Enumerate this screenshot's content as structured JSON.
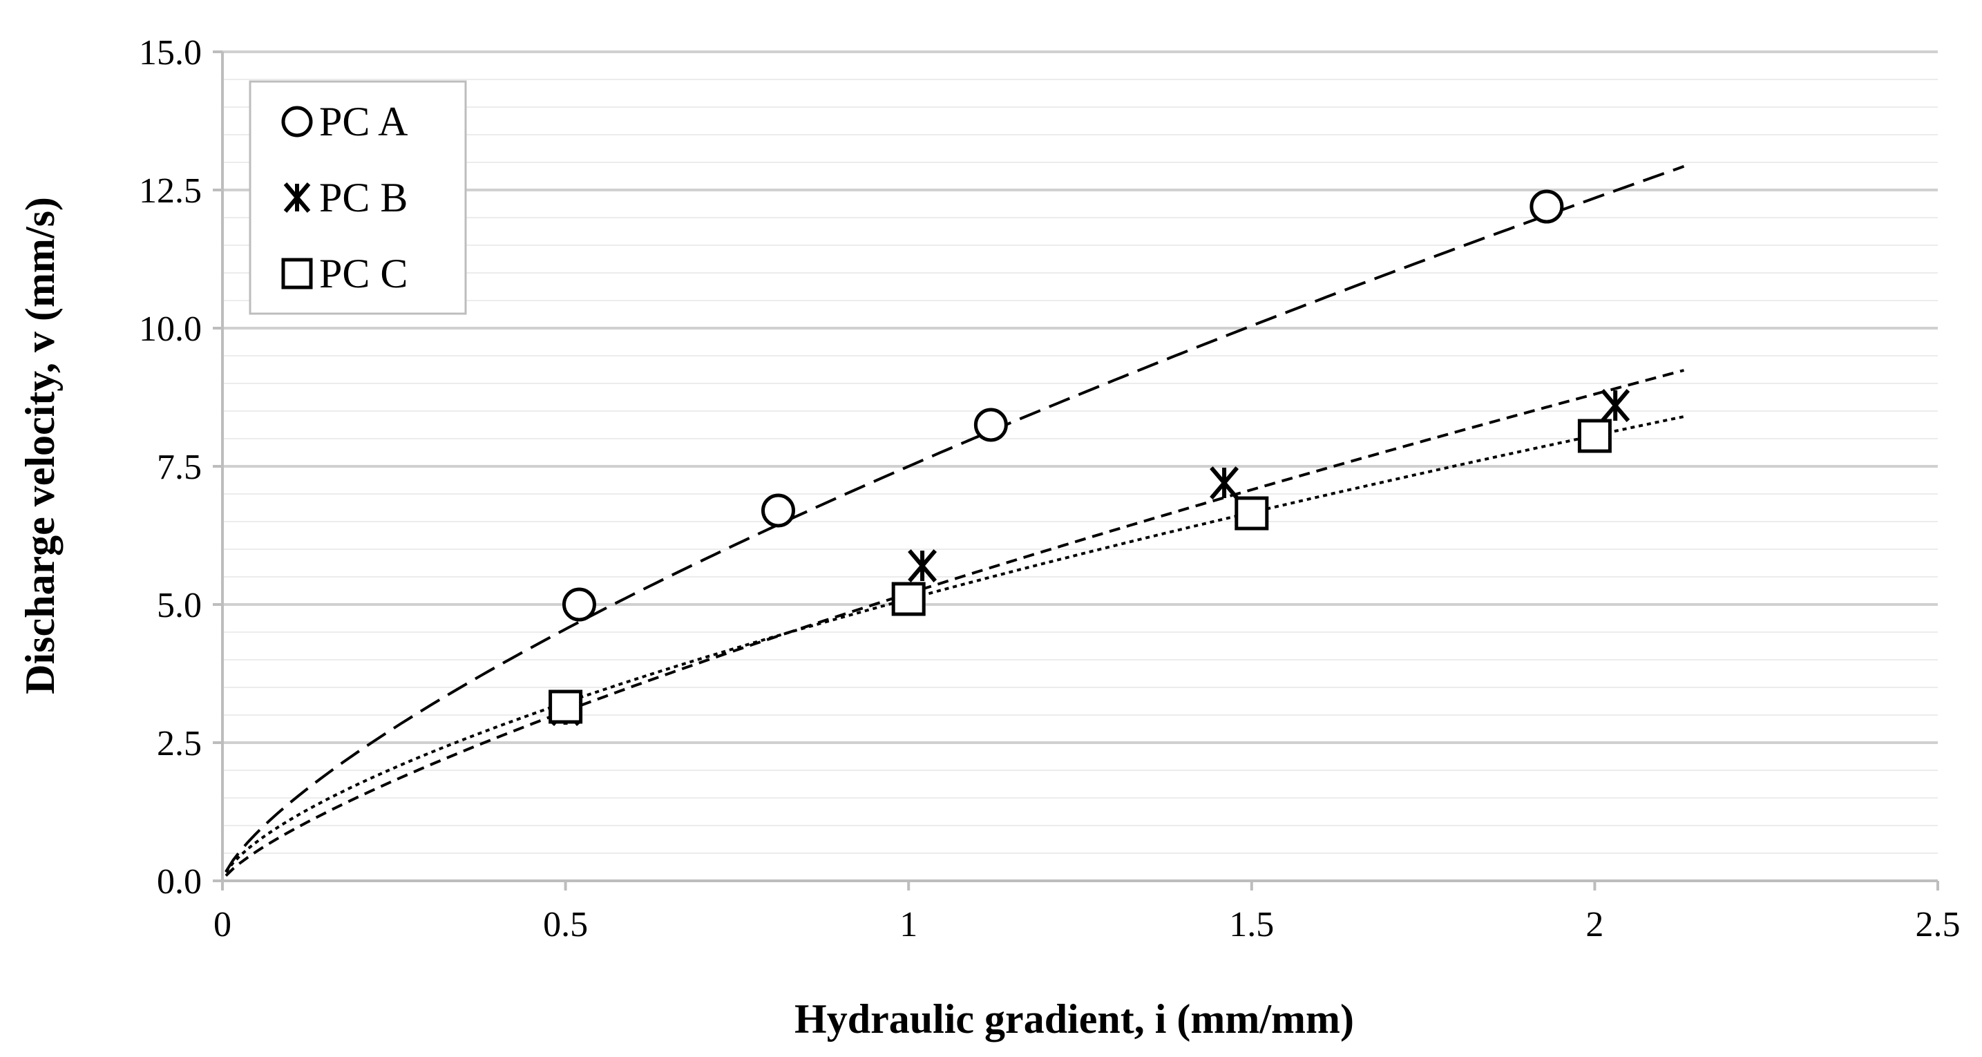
{
  "chart_data": {
    "type": "scatter",
    "title": "",
    "xlabel": "Hydraulic gradient, i (mm/mm)",
    "ylabel": "Discharge velocity, v (mm/s)",
    "xlim": [
      0,
      2.5
    ],
    "ylim": [
      0,
      15
    ],
    "x_ticks": [
      "0",
      "0.5",
      "1",
      "1.5",
      "2",
      "2.5"
    ],
    "y_ticks": [
      "0.0",
      "2.5",
      "5.0",
      "7.5",
      "10.0",
      "12.5",
      "15.0"
    ],
    "grid": "horizontal major and minor",
    "legend_position": "top-left",
    "series": [
      {
        "name": "PC A",
        "marker": "circle",
        "x": [
          0.52,
          0.81,
          1.12,
          1.93
        ],
        "y": [
          5.0,
          6.7,
          8.25,
          12.2
        ],
        "trendline": {
          "style": "long-dash",
          "a": 7.5,
          "b": 0.72,
          "x_end": 2.13
        }
      },
      {
        "name": "PC B",
        "marker": "asterisk",
        "x": [
          0.5,
          1.02,
          1.46,
          2.03
        ],
        "y": [
          3.1,
          5.7,
          7.2,
          8.6
        ],
        "trendline": {
          "style": "dash",
          "a": 5.2,
          "b": 0.76,
          "x_end": 2.13
        }
      },
      {
        "name": "PC C",
        "marker": "square",
        "x": [
          0.5,
          1.0,
          1.5,
          2.0
        ],
        "y": [
          3.15,
          5.1,
          6.65,
          8.05
        ],
        "trendline": {
          "style": "dot",
          "a": 5.1,
          "b": 0.66,
          "x_end": 2.13
        }
      }
    ]
  }
}
